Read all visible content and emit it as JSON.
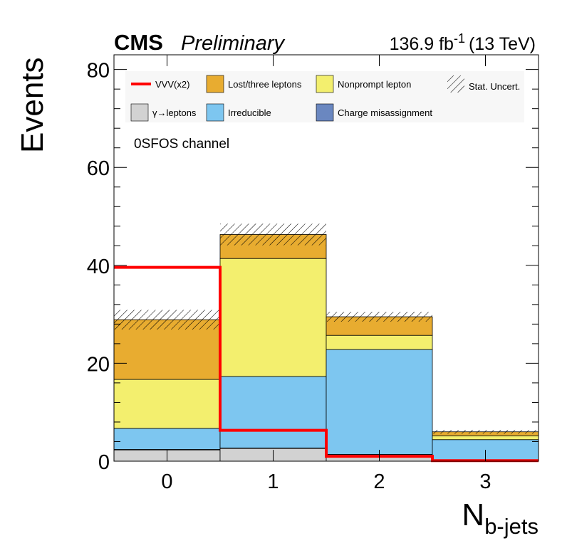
{
  "header": {
    "experiment": "CMS",
    "status": "Preliminary",
    "lumi": "136.9 fb",
    "lumi_exp": "-1",
    "energy": "(13 TeV)"
  },
  "annotation": "0SFOS channel",
  "legend": {
    "placement": "top",
    "items": [
      {
        "label": "VVV(x2)",
        "style": "line",
        "color": "#ff0000"
      },
      {
        "label": "Lost/three leptons",
        "style": "box",
        "color": "#e8ac30"
      },
      {
        "label": "Nonprompt lepton",
        "style": "box",
        "color": "#f3ef6e"
      },
      {
        "label": "Stat. Uncert.",
        "style": "hatch",
        "color": "#000000"
      },
      {
        "label": "γ→leptons",
        "style": "box",
        "color": "#d2d2d2"
      },
      {
        "label": "Irreducible",
        "style": "box",
        "color": "#7dc6f0"
      },
      {
        "label": "Charge misassignment",
        "style": "box",
        "color": "#6a87c0"
      }
    ]
  },
  "chart_data": {
    "type": "bar",
    "stacked": true,
    "title": "",
    "xlabel": "N",
    "xlabel_sub": "b-jets",
    "ylabel": "Events",
    "ylim": [
      0,
      83
    ],
    "yticks": [
      0,
      20,
      40,
      60,
      80
    ],
    "categories": [
      "0",
      "1",
      "2",
      "3"
    ],
    "series": [
      {
        "name": "γ→leptons",
        "color": "#d2d2d2",
        "values": [
          2.3,
          2.6,
          1.1,
          0.2
        ]
      },
      {
        "name": "Charge misassignment",
        "color": "#6a87c0",
        "values": [
          0.1,
          0.1,
          0.3,
          0.0
        ]
      },
      {
        "name": "Irreducible",
        "color": "#7dc6f0",
        "values": [
          4.3,
          14.6,
          21.4,
          4.2
        ]
      },
      {
        "name": "Nonprompt lepton",
        "color": "#f3ef6e",
        "values": [
          10.0,
          24.1,
          2.9,
          0.8
        ]
      },
      {
        "name": "Lost/three leptons",
        "color": "#e8ac30",
        "values": [
          12.2,
          4.9,
          3.8,
          0.8
        ]
      }
    ],
    "total": [
      28.9,
      46.3,
      29.5,
      6.0
    ],
    "stat_uncert": [
      2.0,
      2.2,
      1.0,
      0.4
    ],
    "signal": {
      "name": "VVV(x2)",
      "color": "#ff0000",
      "values": [
        39.6,
        6.3,
        1.0,
        0.1
      ]
    }
  }
}
